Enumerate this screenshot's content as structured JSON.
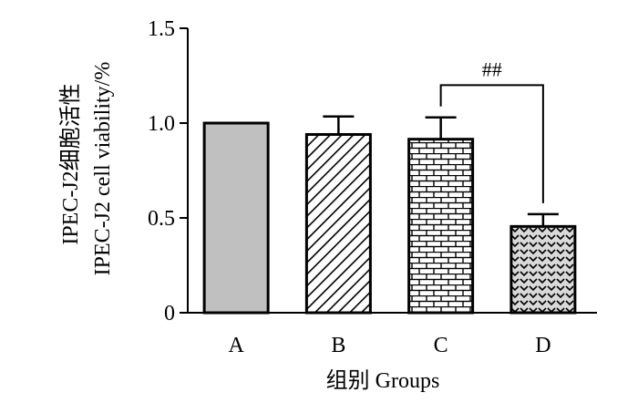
{
  "chart_data": {
    "type": "bar",
    "categories": [
      "A",
      "B",
      "C",
      "D"
    ],
    "values": [
      1.0,
      0.94,
      0.915,
      0.455
    ],
    "error_upper": [
      1.0,
      1.035,
      1.03,
      0.52
    ],
    "patterns": [
      "solid-gray",
      "diagonal-hatch",
      "brick",
      "chevron-dots"
    ],
    "ylim": [
      0,
      1.5
    ],
    "yticks": [
      {
        "value": 0,
        "label": "0"
      },
      {
        "value": 0.5,
        "label": "0.5"
      },
      {
        "value": 1.0,
        "label": "1.0"
      },
      {
        "value": 1.5,
        "label": "1.5"
      }
    ],
    "xlabel": "组别 Groups",
    "ylabel_line1": "IPEC-J2细胞活性",
    "ylabel_line2": "IPEC-J2 cell viability/%",
    "significance": {
      "from": "C",
      "to": "D",
      "label": "##"
    },
    "colors": {
      "bar_fill": "#c0c0c0",
      "axis": "#000000"
    },
    "grid": false
  }
}
